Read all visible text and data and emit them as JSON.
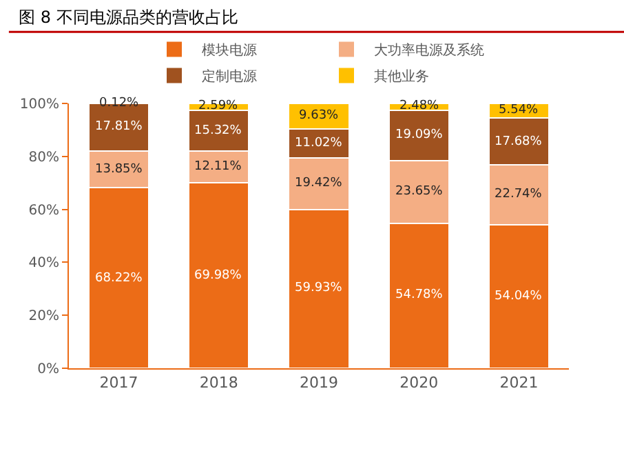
{
  "chart_data": {
    "type": "bar",
    "title": "图 8 不同电源品类的营收占比",
    "stacked": true,
    "categories": [
      "2017",
      "2018",
      "2019",
      "2020",
      "2021"
    ],
    "series": [
      {
        "name": "模块电源",
        "color": "#ec6c17",
        "values": [
          68.22,
          69.98,
          59.93,
          54.78,
          54.04
        ],
        "value_labels": [
          "68.22%",
          "69.98%",
          "59.93%",
          "54.78%",
          "54.04%"
        ]
      },
      {
        "name": "大功率电源及系统",
        "color": "#f4ae84",
        "values": [
          13.85,
          12.11,
          19.42,
          23.65,
          22.74
        ],
        "value_labels": [
          "13.85%",
          "12.11%",
          "19.42%",
          "23.65%",
          "22.74%"
        ]
      },
      {
        "name": "定制电源",
        "color": "#a0521f",
        "values": [
          17.81,
          15.32,
          11.02,
          19.09,
          17.68
        ],
        "value_labels": [
          "17.81%",
          "15.32%",
          "11.02%",
          "19.09%",
          "17.68%"
        ]
      },
      {
        "name": "其他业务",
        "color": "#ffc000",
        "values": [
          0.12,
          2.59,
          9.63,
          2.48,
          5.54
        ],
        "value_labels": [
          "0.12%",
          "2.59%",
          "9.63%",
          "2.48%",
          "5.54%"
        ]
      }
    ],
    "ylim": [
      0,
      100
    ],
    "yticks": [
      {
        "value": 0,
        "label": "0%"
      },
      {
        "value": 20,
        "label": "20%"
      },
      {
        "value": 40,
        "label": "40%"
      },
      {
        "value": 60,
        "label": "60%"
      },
      {
        "value": 80,
        "label": "80%"
      },
      {
        "value": 100,
        "label": "100%"
      }
    ],
    "legend": "top"
  }
}
